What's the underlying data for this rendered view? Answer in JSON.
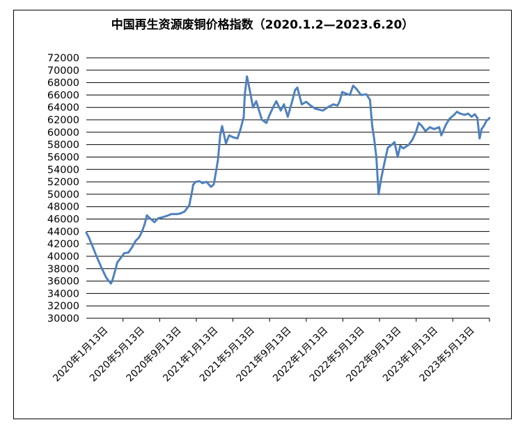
{
  "chart_data": {
    "type": "line",
    "title": "中国再生资源废铜价格指数（2020.1.2—2023.6.20）",
    "xlabel": "",
    "ylabel": "",
    "ylim": [
      30000,
      72000
    ],
    "yticks": [
      "72000",
      "70000",
      "68000",
      "66000",
      "64000",
      "62000",
      "60000",
      "58000",
      "56000",
      "54000",
      "52000",
      "50000",
      "48000",
      "46000",
      "44000",
      "42000",
      "40000",
      "38000",
      "36000",
      "34000",
      "32000",
      "30000"
    ],
    "xticks": [
      "2020年1月13日",
      "2020年5月13日",
      "2020年9月13日",
      "2021年1月13日",
      "2021年5月13日",
      "2021年9月13日",
      "2022年1月13日",
      "2022年5月13日",
      "2022年9月13日",
      "2023年1月13日",
      "2023年5月13日"
    ],
    "grid": "horizontal",
    "line_color": "#4f81bd",
    "series": [
      {
        "x": [
          "2020-01-02",
          "2020-01-10",
          "2020-01-20",
          "2020-02-03",
          "2020-02-20",
          "2020-03-05",
          "2020-03-19",
          "2020-03-23",
          "2020-03-31",
          "2020-04-08",
          "2020-04-20",
          "2020-04-30",
          "2020-05-13",
          "2020-05-25",
          "2020-06-05",
          "2020-06-15",
          "2020-06-25",
          "2020-07-03",
          "2020-07-10",
          "2020-07-20",
          "2020-08-03",
          "2020-08-14",
          "2020-08-28",
          "2020-09-10",
          "2020-09-25",
          "2020-10-12",
          "2020-10-23",
          "2020-11-05",
          "2020-11-20",
          "2020-11-30",
          "2020-12-02",
          "2020-12-10",
          "2020-12-22",
          "2020-12-31",
          "2021-01-13",
          "2021-01-27",
          "2021-02-05",
          "2021-02-18",
          "2021-02-25",
          "2021-03-03",
          "2021-03-15",
          "2021-03-25",
          "2021-04-06",
          "2021-04-20",
          "2021-04-30",
          "2021-05-10",
          "2021-05-13",
          "2021-05-20",
          "2021-05-28",
          "2021-06-08",
          "2021-06-18",
          "2021-06-25",
          "2021-07-06",
          "2021-07-20",
          "2021-07-30",
          "2021-08-10",
          "2021-08-20",
          "2021-09-03",
          "2021-09-13",
          "2021-09-25",
          "2021-10-08",
          "2021-10-18",
          "2021-10-25",
          "2021-11-08",
          "2021-11-22",
          "2021-12-06",
          "2021-12-20",
          "2022-01-13",
          "2022-01-28",
          "2022-02-15",
          "2022-02-28",
          "2022-03-07",
          "2022-03-15",
          "2022-03-28",
          "2022-04-08",
          "2022-04-18",
          "2022-04-28",
          "2022-05-13",
          "2022-05-30",
          "2022-06-10",
          "2022-06-17",
          "2022-06-23",
          "2022-06-30",
          "2022-07-07",
          "2022-07-15",
          "2022-07-25",
          "2022-08-05",
          "2022-08-18",
          "2022-08-26",
          "2022-09-05",
          "2022-09-13",
          "2022-09-23",
          "2022-10-10",
          "2022-10-21",
          "2022-11-01",
          "2022-11-10",
          "2022-11-20",
          "2022-12-01",
          "2022-12-15",
          "2022-12-28",
          "2023-01-13",
          "2023-01-20",
          "2023-02-03",
          "2023-02-15",
          "2023-03-01",
          "2023-03-10",
          "2023-03-20",
          "2023-04-03",
          "2023-04-14",
          "2023-04-25",
          "2023-05-05",
          "2023-05-13",
          "2023-05-20",
          "2023-05-26",
          "2023-06-02",
          "2023-06-10",
          "2023-06-20"
        ],
        "y": [
          43800,
          43000,
          41800,
          40000,
          38000,
          36500,
          35600,
          36000,
          37400,
          39000,
          39800,
          40500,
          40600,
          41500,
          42500,
          43000,
          44000,
          45200,
          46600,
          46100,
          45500,
          46100,
          46300,
          46500,
          46800,
          46800,
          46900,
          47200,
          48200,
          50800,
          51500,
          52000,
          52100,
          51800,
          52000,
          51200,
          51600,
          55500,
          59500,
          61000,
          58200,
          59500,
          59200,
          59000,
          60500,
          62500,
          66000,
          69000,
          67000,
          64000,
          65000,
          63800,
          62000,
          61500,
          62800,
          64000,
          65000,
          63500,
          64500,
          62500,
          64800,
          66800,
          67200,
          64500,
          64900,
          64300,
          63800,
          63500,
          64000,
          64500,
          64300,
          65000,
          66500,
          66200,
          66000,
          67500,
          67000,
          66000,
          66100,
          65200,
          61000,
          59000,
          56000,
          50000,
          52500,
          55000,
          57500,
          58000,
          58400,
          56000,
          57800,
          57400,
          58000,
          58800,
          60000,
          61500,
          61000,
          60200,
          60800,
          60500,
          60800,
          59500,
          61200,
          62200,
          62800,
          63300,
          63000,
          62800,
          63000,
          62500,
          62900,
          62300,
          59000,
          60500,
          61000,
          61800,
          62300
        ]
      }
    ]
  }
}
